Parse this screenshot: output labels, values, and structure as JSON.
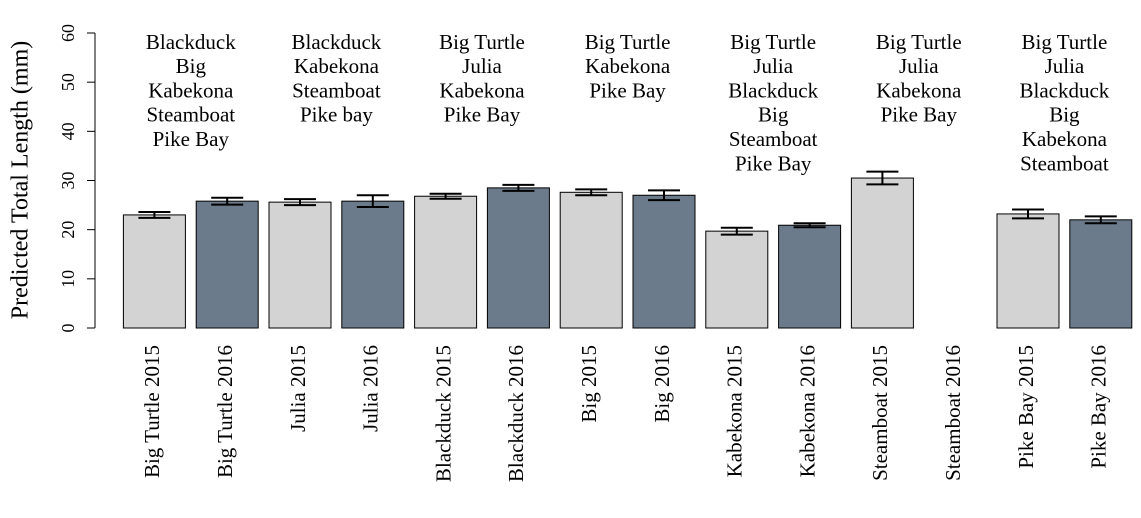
{
  "chart_data": {
    "type": "bar",
    "y_label": "Predicted Total Length (mm)",
    "categories": [
      "Big Turtle 2015",
      "Big Turtle 2016",
      "Julia 2015",
      "Julia 2016",
      "Blackduck 2015",
      "Blackduck 2016",
      "Big 2015",
      "Big 2016",
      "Kabekona 2015",
      "Kabekona 2016",
      "Steamboat 2015",
      "Steamboat 2016",
      "Pike Bay 2015",
      "Pike Bay 2016"
    ],
    "values": [
      23.0,
      25.8,
      25.6,
      25.8,
      26.8,
      28.5,
      27.6,
      27.0,
      19.7,
      20.9,
      30.5,
      null,
      23.2,
      22.0
    ],
    "errors": [
      0.6,
      0.7,
      0.6,
      1.2,
      0.5,
      0.6,
      0.6,
      1.0,
      0.7,
      0.4,
      1.3,
      null,
      0.9,
      0.7
    ],
    "colors": [
      "#d3d3d3",
      "#6c7b8b"
    ],
    "ylim": [
      0,
      60
    ],
    "yticks": [
      0,
      10,
      20,
      30,
      40,
      50,
      60
    ],
    "annotations": [
      [
        "Blackduck",
        "Big",
        "Kabekona",
        "Steamboat",
        "Pike Bay"
      ],
      [
        "Blackduck",
        "Kabekona",
        "Steamboat",
        "Pike bay"
      ],
      [
        "Big Turtle",
        "Julia",
        "Kabekona",
        "Pike Bay"
      ],
      [
        "Big Turtle",
        "Kabekona",
        "Pike Bay"
      ],
      [
        "Big Turtle",
        "Julia",
        "Blackduck",
        "Big",
        "Steamboat",
        "Pike Bay"
      ],
      [
        "Big Turtle",
        "Julia",
        "Kabekona",
        "Pike Bay"
      ],
      [
        "Big Turtle",
        "Julia",
        "Blackduck",
        "Big",
        "Kabekona",
        "Steamboat"
      ]
    ]
  }
}
